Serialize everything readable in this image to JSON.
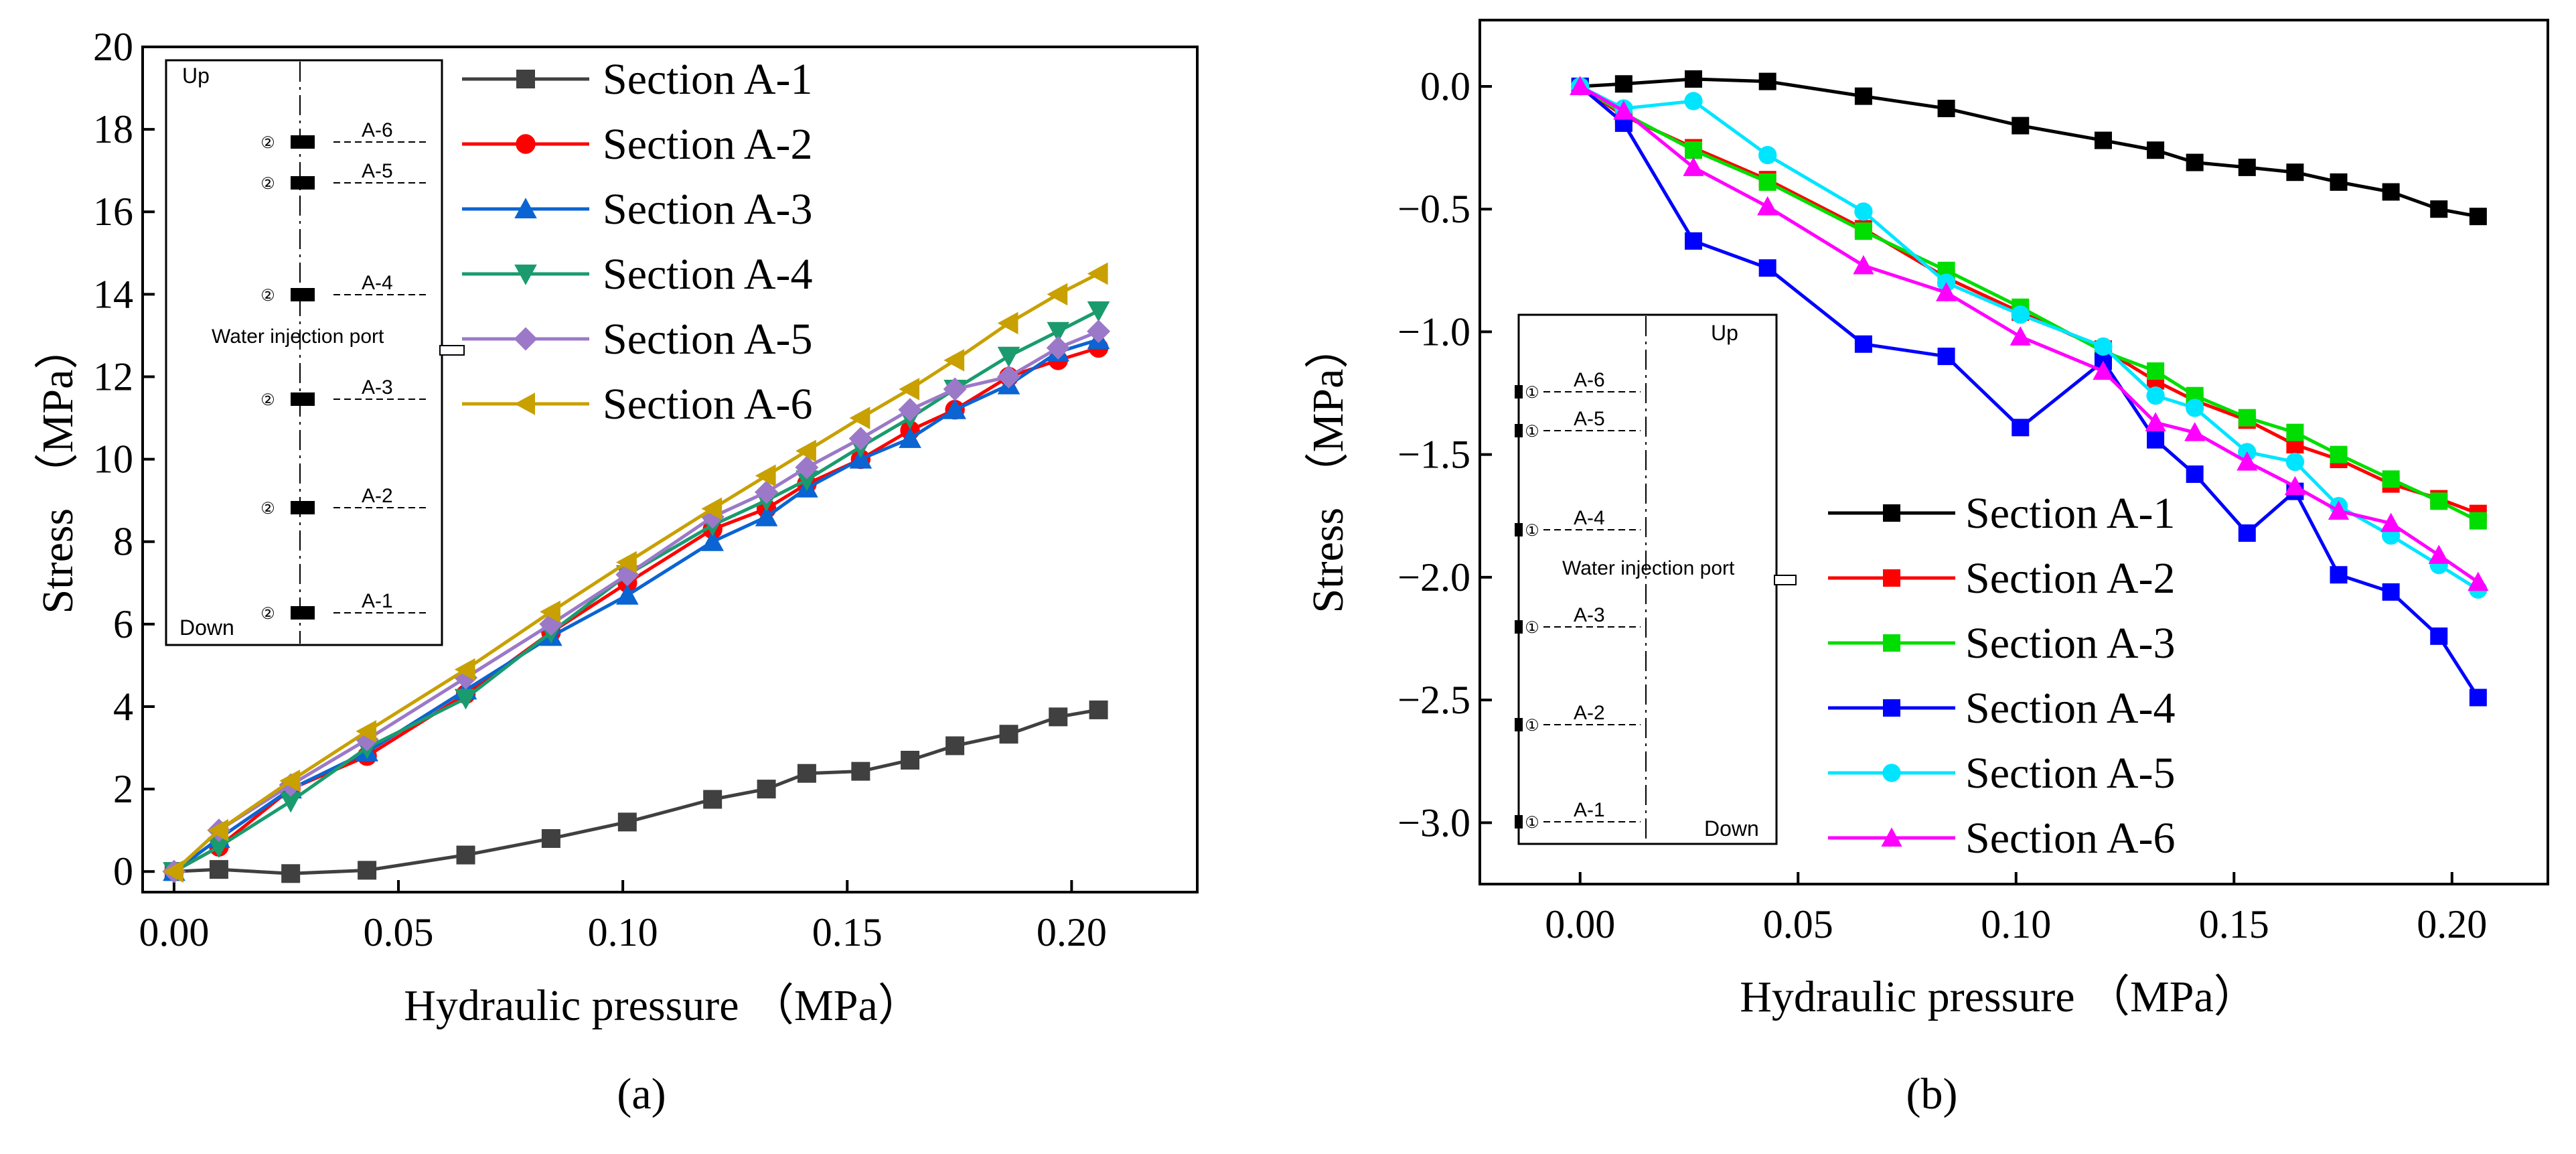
{
  "chart_data": [
    {
      "type": "line",
      "panel": "a",
      "caption": "(a)",
      "xlabel": "Hydraulic pressure （MPa）",
      "ylabel": "Stress （MPa）",
      "xlim": [
        -0.007,
        0.228
      ],
      "ylim": [
        -0.5,
        20
      ],
      "xticks": [
        0.0,
        0.05,
        0.1,
        0.15,
        0.2
      ],
      "xtick_labels": [
        "0.00",
        "0.05",
        "0.10",
        "0.15",
        "0.20"
      ],
      "yticks": [
        0,
        2,
        4,
        6,
        8,
        10,
        12,
        14,
        16,
        18,
        20
      ],
      "ytick_labels": [
        "0",
        "2",
        "4",
        "6",
        "8",
        "10",
        "12",
        "14",
        "16",
        "18",
        "20"
      ],
      "legend_position": "top-right",
      "x": [
        0.0,
        0.01,
        0.026,
        0.043,
        0.065,
        0.084,
        0.101,
        0.12,
        0.132,
        0.141,
        0.153,
        0.164,
        0.174,
        0.186,
        0.197,
        0.206
      ],
      "series": [
        {
          "name": "Section A-1",
          "color": "#404040",
          "marker": "square",
          "values": [
            0.0,
            0.05,
            -0.05,
            0.03,
            0.4,
            0.8,
            1.2,
            1.75,
            2.0,
            2.38,
            2.43,
            2.7,
            3.05,
            3.33,
            3.75,
            3.92
          ]
        },
        {
          "name": "Section A-2",
          "color": "#ff0000",
          "marker": "circle",
          "values": [
            0.0,
            0.6,
            2.0,
            2.8,
            4.3,
            5.8,
            7.0,
            8.3,
            8.8,
            9.4,
            10.0,
            10.7,
            11.2,
            12.0,
            12.4,
            12.7
          ]
        },
        {
          "name": "Section A-3",
          "color": "#0a64d2",
          "marker": "triangle-up",
          "values": [
            0.0,
            0.8,
            2.0,
            2.9,
            4.4,
            5.7,
            6.7,
            8.0,
            8.6,
            9.3,
            10.0,
            10.5,
            11.2,
            11.8,
            12.6,
            12.9
          ]
        },
        {
          "name": "Section A-4",
          "color": "#1a9b6e",
          "marker": "triangle-down",
          "values": [
            0.0,
            0.6,
            1.7,
            3.0,
            4.2,
            5.8,
            7.2,
            8.4,
            9.0,
            9.5,
            10.3,
            11.0,
            11.7,
            12.5,
            13.1,
            13.6
          ]
        },
        {
          "name": "Section A-5",
          "color": "#9b79c8",
          "marker": "diamond",
          "values": [
            0.0,
            1.0,
            2.1,
            3.2,
            4.7,
            6.0,
            7.2,
            8.6,
            9.2,
            9.8,
            10.5,
            11.2,
            11.7,
            12.0,
            12.7,
            13.1
          ]
        },
        {
          "name": "Section A-6",
          "color": "#c8a000",
          "marker": "triangle-left",
          "values": [
            0.0,
            1.0,
            2.2,
            3.4,
            4.9,
            6.3,
            7.5,
            8.8,
            9.6,
            10.2,
            11.0,
            11.7,
            12.4,
            13.3,
            14.0,
            14.5
          ]
        }
      ],
      "inset": {
        "top_label": "Up",
        "bottom_label": "Down",
        "port_label": "Water injection port",
        "gauge_mark": "②",
        "sections": [
          "A-6",
          "A-5",
          "A-4",
          "A-3",
          "A-2",
          "A-1"
        ]
      }
    },
    {
      "type": "line",
      "panel": "b",
      "caption": "(b)",
      "xlabel": "Hydraulic pressure （MPa）",
      "ylabel": "Stress （MPa）",
      "xlim": [
        -0.023,
        0.222
      ],
      "ylim": [
        -3.25,
        0.27
      ],
      "xticks": [
        0.0,
        0.05,
        0.1,
        0.15,
        0.2
      ],
      "xtick_labels": [
        "0.00",
        "0.05",
        "0.10",
        "0.15",
        "0.20"
      ],
      "yticks": [
        0.0,
        -0.5,
        -1.0,
        -1.5,
        -2.0,
        -2.5,
        -3.0
      ],
      "ytick_labels": [
        "0.0",
        "−0.5",
        "−1.0",
        "−1.5",
        "−2.0",
        "−2.5",
        "−3.0"
      ],
      "legend_position": "lower-right",
      "x": [
        0.0,
        0.01,
        0.026,
        0.043,
        0.065,
        0.084,
        0.101,
        0.12,
        0.132,
        0.141,
        0.153,
        0.164,
        0.174,
        0.186,
        0.197,
        0.206
      ],
      "series": [
        {
          "name": "Section A-1",
          "color": "#000000",
          "marker": "square",
          "values": [
            0.0,
            0.01,
            0.03,
            0.02,
            -0.04,
            -0.09,
            -0.16,
            -0.22,
            -0.26,
            -0.31,
            -0.33,
            -0.35,
            -0.39,
            -0.43,
            -0.5,
            -0.53
          ]
        },
        {
          "name": "Section A-2",
          "color": "#ff0000",
          "marker": "square",
          "values": [
            0.0,
            -0.12,
            -0.25,
            -0.38,
            -0.58,
            -0.78,
            -0.92,
            -1.07,
            -1.2,
            -1.28,
            -1.36,
            -1.46,
            -1.52,
            -1.62,
            -1.68,
            -1.74
          ]
        },
        {
          "name": "Section A-3",
          "color": "#00dd00",
          "marker": "square",
          "values": [
            0.0,
            -0.11,
            -0.26,
            -0.39,
            -0.59,
            -0.75,
            -0.9,
            -1.08,
            -1.16,
            -1.26,
            -1.35,
            -1.41,
            -1.5,
            -1.6,
            -1.69,
            -1.77
          ]
        },
        {
          "name": "Section A-4",
          "color": "#0000ff",
          "marker": "square",
          "values": [
            0.0,
            -0.15,
            -0.63,
            -0.74,
            -1.05,
            -1.1,
            -1.39,
            -1.12,
            -1.44,
            -1.58,
            -1.82,
            -1.65,
            -1.99,
            -2.06,
            -2.24,
            -2.49
          ]
        },
        {
          "name": "Section A-5",
          "color": "#00e5ff",
          "marker": "circle",
          "values": [
            0.0,
            -0.09,
            -0.06,
            -0.28,
            -0.51,
            -0.8,
            -0.93,
            -1.06,
            -1.26,
            -1.31,
            -1.49,
            -1.53,
            -1.71,
            -1.83,
            -1.95,
            -2.05
          ]
        },
        {
          "name": "Section A-6",
          "color": "#ff00ff",
          "marker": "triangle-up",
          "values": [
            0.0,
            -0.1,
            -0.33,
            -0.49,
            -0.73,
            -0.84,
            -1.02,
            -1.16,
            -1.37,
            -1.41,
            -1.53,
            -1.63,
            -1.73,
            -1.78,
            -1.91,
            -2.02
          ]
        }
      ],
      "inset": {
        "top_label": "Up",
        "bottom_label": "Down",
        "port_label": "Water injection port",
        "gauge_mark": "①",
        "sections": [
          "A-6",
          "A-5",
          "A-4",
          "A-3",
          "A-2",
          "A-1"
        ]
      }
    }
  ]
}
